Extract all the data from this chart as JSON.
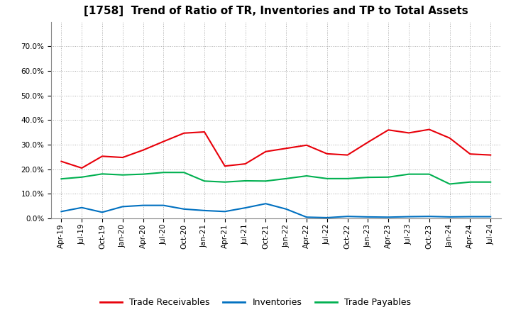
{
  "title": "[1758]  Trend of Ratio of TR, Inventories and TP to Total Assets",
  "x_labels": [
    "Apr-19",
    "Jul-19",
    "Oct-19",
    "Jan-20",
    "Apr-20",
    "Jul-20",
    "Oct-20",
    "Jan-21",
    "Apr-21",
    "Jul-21",
    "Oct-21",
    "Jan-22",
    "Apr-22",
    "Jul-22",
    "Oct-22",
    "Jan-23",
    "Apr-23",
    "Jul-23",
    "Oct-23",
    "Jan-24",
    "Apr-24",
    "Jul-24"
  ],
  "trade_receivables": [
    0.232,
    0.205,
    0.253,
    0.248,
    0.278,
    0.313,
    0.347,
    0.352,
    0.213,
    0.222,
    0.272,
    0.285,
    0.298,
    0.263,
    0.258,
    0.31,
    0.36,
    0.348,
    0.362,
    0.327,
    0.262,
    0.258
  ],
  "inventories": [
    0.028,
    0.044,
    0.025,
    0.048,
    0.053,
    0.053,
    0.038,
    0.032,
    0.028,
    0.043,
    0.06,
    0.038,
    0.005,
    0.003,
    0.008,
    0.006,
    0.005,
    0.007,
    0.008,
    0.006,
    0.007,
    0.007
  ],
  "trade_payables": [
    0.161,
    0.168,
    0.181,
    0.177,
    0.18,
    0.187,
    0.187,
    0.152,
    0.148,
    0.153,
    0.152,
    0.162,
    0.173,
    0.162,
    0.162,
    0.167,
    0.168,
    0.18,
    0.18,
    0.14,
    0.148,
    0.148
  ],
  "tr_color": "#e8000a",
  "inv_color": "#0070c0",
  "tp_color": "#00b050",
  "ylim": [
    0.0,
    0.8
  ],
  "yticks": [
    0.0,
    0.1,
    0.2,
    0.3,
    0.4,
    0.5,
    0.6,
    0.7
  ],
  "legend_labels": [
    "Trade Receivables",
    "Inventories",
    "Trade Payables"
  ],
  "background_color": "#ffffff",
  "title_fontsize": 11,
  "tick_fontsize": 7.5,
  "legend_fontsize": 9
}
